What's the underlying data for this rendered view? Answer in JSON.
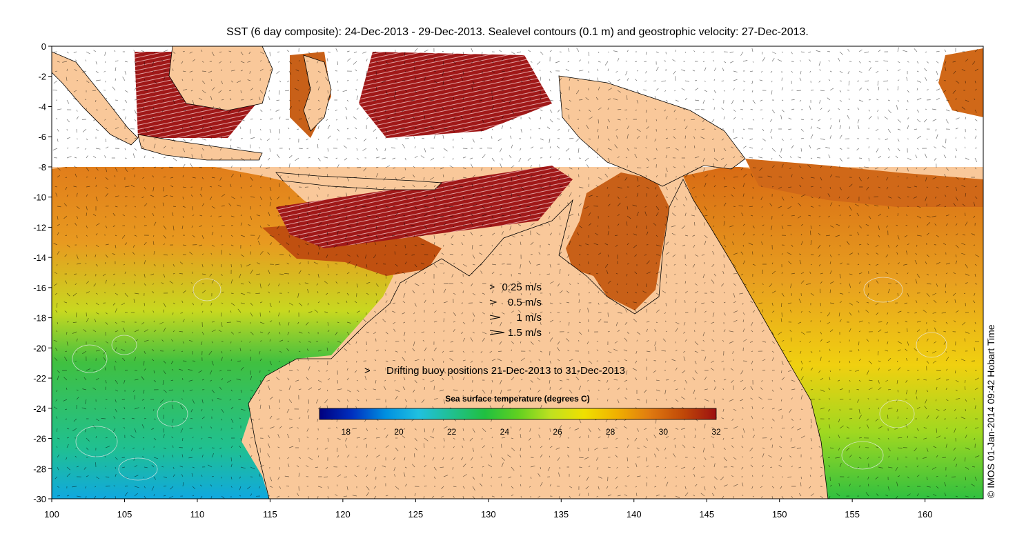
{
  "title": "SST (6 day composite): 24-Dec-2013 - 29-Dec-2013. Sealevel contours (0.1 m) and geostrophic velocity: 27-Dec-2013.",
  "map": {
    "lon_range": [
      100,
      164
    ],
    "lat_range": [
      -30,
      0
    ],
    "x_ticks": [
      100,
      105,
      110,
      115,
      120,
      125,
      130,
      135,
      140,
      145,
      150,
      155,
      160
    ],
    "y_ticks": [
      0,
      -2,
      -4,
      -6,
      -8,
      -10,
      -12,
      -14,
      -16,
      -18,
      -20,
      -22,
      -24,
      -26,
      -28,
      -30
    ],
    "land_color": "#f9c89a",
    "ocean_warm_color": "#e07a1a",
    "cloud_color": "#ffffff"
  },
  "velocity_legend": {
    "items": [
      {
        "label": "0.25 m/s",
        "speed": 0.25
      },
      {
        "label": "0.5 m/s",
        "speed": 0.5
      },
      {
        "label": "1 m/s",
        "speed": 1
      },
      {
        "label": "1.5 m/s",
        "speed": 1.5
      }
    ]
  },
  "buoy_legend": {
    "symbol": ">",
    "label": "Drifting buoy positions 21-Dec-2013 to 31-Dec-2013",
    "color": "#e040e0"
  },
  "colorbar": {
    "title": "Sea surface temperature (degrees C)",
    "min": 17,
    "max": 32,
    "ticks": [
      18,
      20,
      22,
      24,
      26,
      28,
      30,
      32
    ],
    "stops": [
      "#00007f",
      "#0030c0",
      "#0090e0",
      "#20c0e0",
      "#20c090",
      "#20c040",
      "#60d020",
      "#c0e020",
      "#f0e000",
      "#f0b000",
      "#e07a10",
      "#c04808",
      "#9c1010"
    ]
  },
  "credit": "© IMOS 01-Jan-2014 09:42 Hobart Time"
}
